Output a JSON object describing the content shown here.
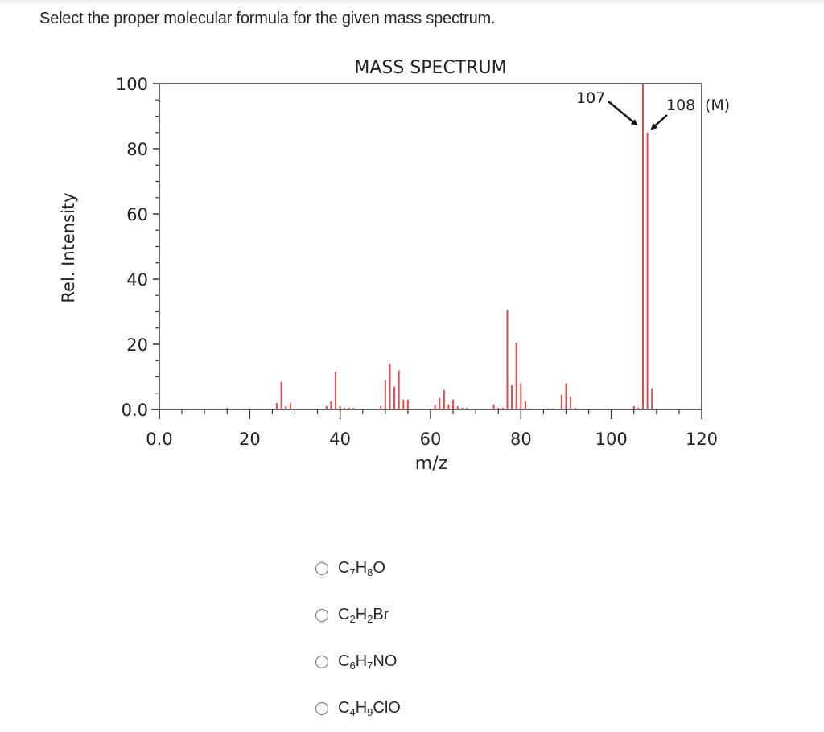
{
  "question": {
    "text": "Select the proper molecular formula for the given mass spectrum."
  },
  "chart_data": {
    "type": "bar",
    "title": "MASS SPECTRUM",
    "xlabel": "m/z",
    "ylabel": "Rel. Intensity",
    "xlim": [
      0,
      120
    ],
    "ylim": [
      0,
      100
    ],
    "x_ticks": [
      "0.0",
      "20",
      "40",
      "60",
      "80",
      "100",
      "120"
    ],
    "x_tick_values": [
      0,
      20,
      40,
      60,
      80,
      100,
      120
    ],
    "y_ticks": [
      "0.0",
      "20",
      "40",
      "60",
      "80",
      "100"
    ],
    "y_tick_values": [
      0,
      20,
      40,
      60,
      80,
      100
    ],
    "grid": false,
    "color": "#e8474c",
    "peaks": [
      {
        "mz": 15,
        "intensity": 0.5
      },
      {
        "mz": 26,
        "intensity": 2
      },
      {
        "mz": 27,
        "intensity": 8.5
      },
      {
        "mz": 28,
        "intensity": 1
      },
      {
        "mz": 29,
        "intensity": 2
      },
      {
        "mz": 37,
        "intensity": 1
      },
      {
        "mz": 38,
        "intensity": 2.5
      },
      {
        "mz": 39,
        "intensity": 11.5
      },
      {
        "mz": 40,
        "intensity": 1
      },
      {
        "mz": 41,
        "intensity": 0.5
      },
      {
        "mz": 42,
        "intensity": 0.5
      },
      {
        "mz": 43,
        "intensity": 0.5
      },
      {
        "mz": 49,
        "intensity": 1
      },
      {
        "mz": 50,
        "intensity": 9
      },
      {
        "mz": 51,
        "intensity": 14
      },
      {
        "mz": 52,
        "intensity": 7
      },
      {
        "mz": 53,
        "intensity": 12
      },
      {
        "mz": 54,
        "intensity": 3
      },
      {
        "mz": 55,
        "intensity": 3
      },
      {
        "mz": 61,
        "intensity": 1.5
      },
      {
        "mz": 62,
        "intensity": 3.5
      },
      {
        "mz": 63,
        "intensity": 6
      },
      {
        "mz": 64,
        "intensity": 1.5
      },
      {
        "mz": 65,
        "intensity": 3
      },
      {
        "mz": 66,
        "intensity": 1
      },
      {
        "mz": 67,
        "intensity": 0.5
      },
      {
        "mz": 68,
        "intensity": 0.5
      },
      {
        "mz": 74,
        "intensity": 1.5
      },
      {
        "mz": 75,
        "intensity": 0.5
      },
      {
        "mz": 76,
        "intensity": 0.5
      },
      {
        "mz": 77,
        "intensity": 30.5
      },
      {
        "mz": 78,
        "intensity": 7.5
      },
      {
        "mz": 79,
        "intensity": 20.5
      },
      {
        "mz": 80,
        "intensity": 8
      },
      {
        "mz": 81,
        "intensity": 2.5
      },
      {
        "mz": 82,
        "intensity": 0.3
      },
      {
        "mz": 86,
        "intensity": 0.3
      },
      {
        "mz": 87,
        "intensity": 0.3
      },
      {
        "mz": 89,
        "intensity": 4.5
      },
      {
        "mz": 90,
        "intensity": 8
      },
      {
        "mz": 91,
        "intensity": 4
      },
      {
        "mz": 92,
        "intensity": 0.5
      },
      {
        "mz": 105,
        "intensity": 1
      },
      {
        "mz": 106,
        "intensity": 0.5
      },
      {
        "mz": 107,
        "intensity": 100
      },
      {
        "mz": 108,
        "intensity": 85
      },
      {
        "mz": 109,
        "intensity": 6.5
      }
    ],
    "annotations": [
      {
        "text": "107",
        "target_mz": 107
      },
      {
        "text": "108",
        "target_mz": 108
      },
      {
        "text": "(M)",
        "target_mz": 108
      }
    ]
  },
  "options": [
    {
      "parts": [
        [
          "C",
          ""
        ],
        [
          "7",
          "sub"
        ],
        [
          "H",
          ""
        ],
        [
          "8",
          "sub"
        ],
        [
          "O",
          ""
        ]
      ],
      "label": "C7H8O"
    },
    {
      "parts": [
        [
          "C",
          ""
        ],
        [
          "2",
          "sub"
        ],
        [
          "H",
          ""
        ],
        [
          "2",
          "sub"
        ],
        [
          "Br",
          ""
        ]
      ],
      "label": "C2H2Br"
    },
    {
      "parts": [
        [
          "C",
          ""
        ],
        [
          "6",
          "sub"
        ],
        [
          "H",
          ""
        ],
        [
          "7",
          "sub"
        ],
        [
          "NO",
          ""
        ]
      ],
      "label": "C6H7NO"
    },
    {
      "parts": [
        [
          "C",
          ""
        ],
        [
          "4",
          "sub"
        ],
        [
          "H",
          ""
        ],
        [
          "9",
          "sub"
        ],
        [
          "ClO",
          ""
        ]
      ],
      "label": "C4H9ClO"
    }
  ]
}
